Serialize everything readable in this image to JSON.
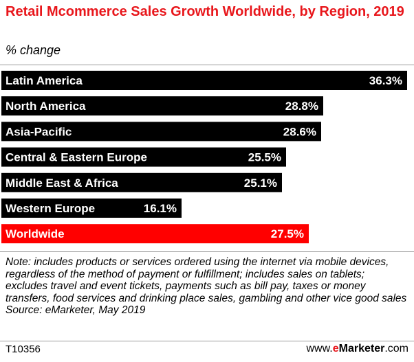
{
  "title": "Retail Mcommerce Sales Growth Worldwide, by Region, 2019",
  "subtitle": "% change",
  "colors": {
    "bar": "#000000",
    "highlight": "#ff0000",
    "bar_text": "#ffffff",
    "title": "#e8161b"
  },
  "chart_data": {
    "type": "bar",
    "orientation": "horizontal",
    "title": "Retail Mcommerce Sales Growth Worldwide, by Region, 2019",
    "ylabel": "% change",
    "xlim": [
      0,
      36.3
    ],
    "grid": false,
    "categories": [
      "Latin America",
      "North America",
      "Asia-Pacific",
      "Central & Eastern Europe",
      "Middle East & Africa",
      "Western Europe",
      "Worldwide"
    ],
    "values": [
      36.3,
      28.8,
      28.6,
      25.5,
      25.1,
      16.1,
      27.5
    ],
    "value_labels": [
      "36.3%",
      "28.8%",
      "28.6%",
      "25.5%",
      "25.1%",
      "16.1%",
      "27.5%"
    ],
    "highlight_categories": [
      "Worldwide"
    ]
  },
  "note": "Note: includes products or services ordered using the internet via mobile devices, regardless of the method of payment or fulfillment; includes sales on tablets; excludes travel and event tickets, payments such as bill pay, taxes or money transfers, food services and drinking place sales, gambling and other vice good sales",
  "source": "Source: eMarketer, May 2019",
  "footer": {
    "chart_id": "T10356",
    "brand_prefix": "www.",
    "brand_e": "e",
    "brand_name": "Marketer",
    "brand_suffix": ".com"
  }
}
